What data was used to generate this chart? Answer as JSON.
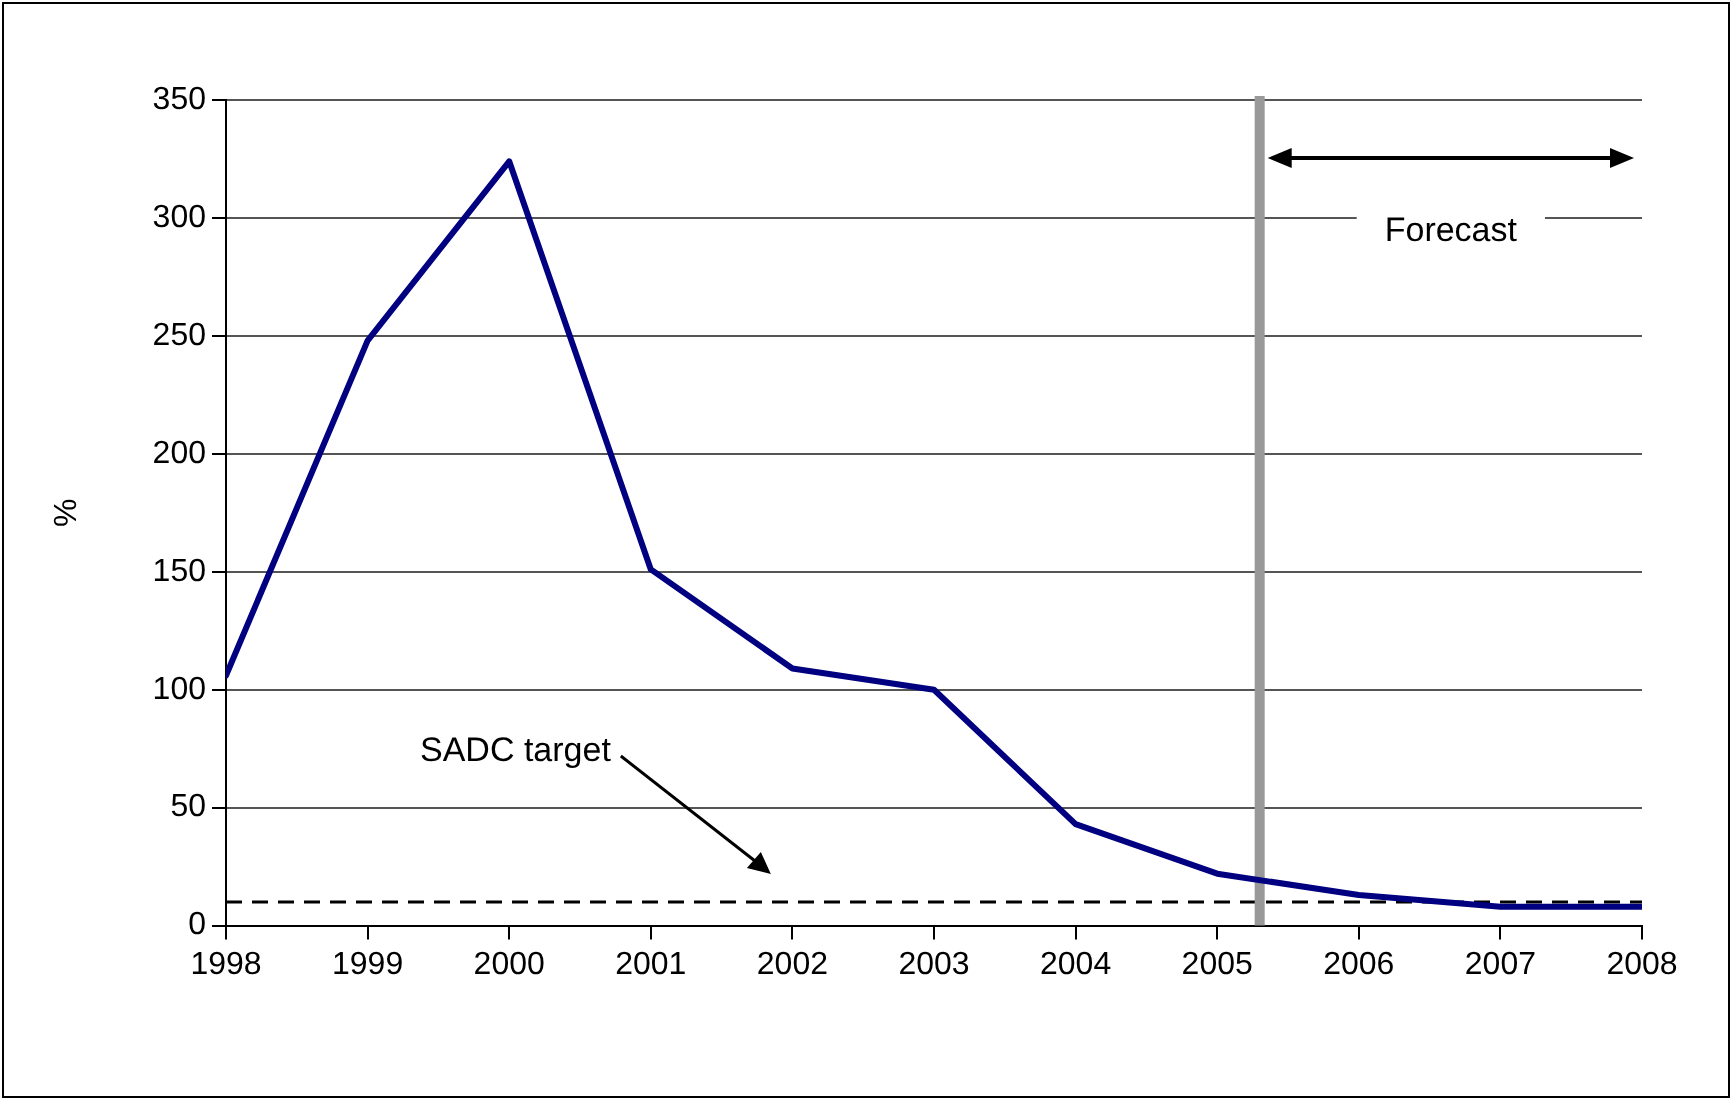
{
  "chart_data": {
    "type": "line",
    "ylabel": "%",
    "x": [
      1998,
      1999,
      2000,
      2001,
      2002,
      2003,
      2004,
      2005,
      2006,
      2007,
      2008
    ],
    "series": [
      {
        "color": "#000080",
        "values": [
          106,
          248,
          324,
          151,
          109,
          100,
          43,
          22,
          13,
          8,
          8
        ]
      }
    ],
    "xlim": [
      1998,
      2008
    ],
    "xticks": [
      1998,
      1999,
      2000,
      2001,
      2002,
      2003,
      2004,
      2005,
      2006,
      2007,
      2008
    ],
    "ylim": [
      0,
      350
    ],
    "yticks": [
      0,
      50,
      100,
      150,
      200,
      250,
      300,
      350
    ],
    "ref_lines": [
      {
        "axis": "y",
        "value": 10,
        "label": "SADC target",
        "color": "#000000",
        "line_style": "dashed"
      },
      {
        "axis": "x",
        "value": 2005.3,
        "color": "#999999"
      }
    ],
    "annotations": [
      "Forecast"
    ],
    "grid": "y",
    "legend": false,
    "marker": "none",
    "line_style": "solid"
  }
}
